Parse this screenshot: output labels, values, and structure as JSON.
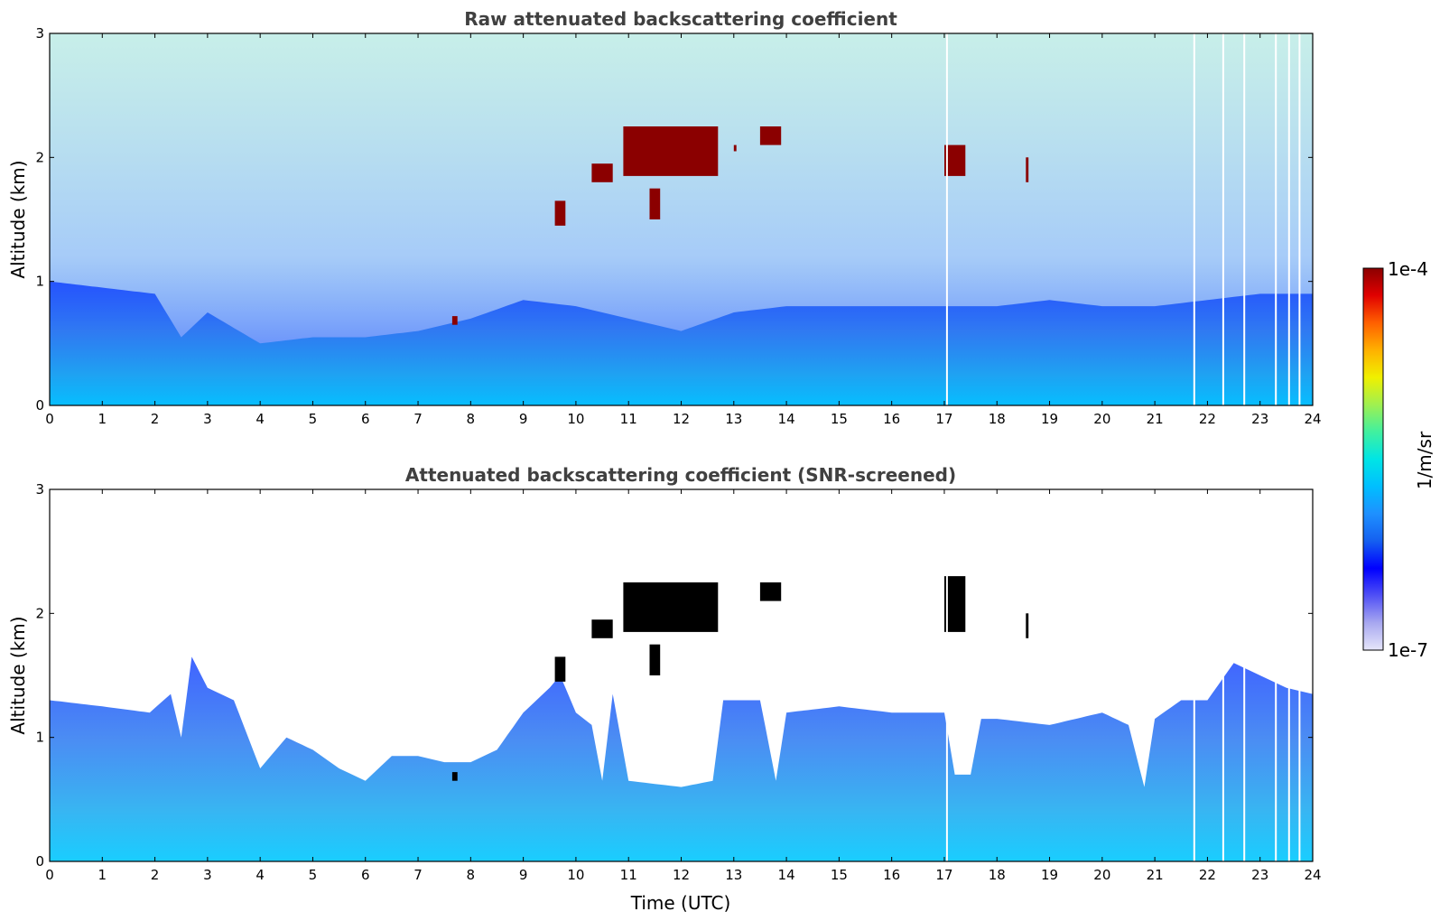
{
  "colorbar": {
    "max_label": "1e-4",
    "min_label": "1e-7",
    "unit_label": "1/m/sr",
    "scale": "log",
    "colormap": [
      "#e6e6fa",
      "#a8a8f0",
      "#5050f5",
      "#0000ff",
      "#1560f0",
      "#1e90ff",
      "#00bfff",
      "#00e5e5",
      "#40f0a0",
      "#a0f050",
      "#f0f000",
      "#ffb000",
      "#ff6000",
      "#e00000",
      "#8b0000"
    ]
  },
  "chart_data": [
    {
      "type": "heatmap",
      "title": "Raw attenuated backscattering coefficient",
      "ylabel": "Altitude (km)",
      "xlabel": "",
      "xlim": [
        0,
        24
      ],
      "ylim": [
        0,
        3
      ],
      "xticks": [
        "0",
        "1",
        "2",
        "3",
        "4",
        "5",
        "6",
        "7",
        "8",
        "9",
        "10",
        "11",
        "12",
        "13",
        "14",
        "15",
        "16",
        "17",
        "18",
        "19",
        "20",
        "21",
        "22",
        "23",
        "24"
      ],
      "yticks": [
        "0",
        "1",
        "2",
        "3"
      ],
      "boundary_layer_top_km": [
        [
          0,
          1.0
        ],
        [
          2,
          0.9
        ],
        [
          2.5,
          0.55
        ],
        [
          3,
          0.75
        ],
        [
          4,
          0.5
        ],
        [
          5,
          0.55
        ],
        [
          6,
          0.55
        ],
        [
          7,
          0.6
        ],
        [
          8,
          0.7
        ],
        [
          9,
          0.85
        ],
        [
          10,
          0.8
        ],
        [
          11,
          0.7
        ],
        [
          12,
          0.6
        ],
        [
          13,
          0.75
        ],
        [
          14,
          0.8
        ],
        [
          15,
          0.8
        ],
        [
          16,
          0.8
        ],
        [
          17,
          0.8
        ],
        [
          18,
          0.8
        ],
        [
          19,
          0.85
        ],
        [
          20,
          0.8
        ],
        [
          21,
          0.8
        ],
        [
          22,
          0.85
        ],
        [
          23,
          0.9
        ],
        [
          24,
          0.9
        ]
      ],
      "cloud_features": [
        {
          "t_start": 9.6,
          "t_end": 9.8,
          "alt_km": [
            1.45,
            1.65
          ]
        },
        {
          "t_start": 10.3,
          "t_end": 10.7,
          "alt_km": [
            1.8,
            1.95
          ]
        },
        {
          "t_start": 10.9,
          "t_end": 12.7,
          "alt_km": [
            1.85,
            2.25
          ]
        },
        {
          "t_start": 11.4,
          "t_end": 11.6,
          "alt_km": [
            1.5,
            1.75
          ]
        },
        {
          "t_start": 13.0,
          "t_end": 13.05,
          "alt_km": [
            2.05,
            2.1
          ]
        },
        {
          "t_start": 13.5,
          "t_end": 13.9,
          "alt_km": [
            2.1,
            2.25
          ]
        },
        {
          "t_start": 17.0,
          "t_end": 17.4,
          "alt_km": [
            1.85,
            2.1
          ]
        },
        {
          "t_start": 18.55,
          "t_end": 18.6,
          "alt_km": [
            1.8,
            2.0
          ]
        },
        {
          "t_start": 7.65,
          "t_end": 7.75,
          "alt_km": [
            0.65,
            0.72
          ]
        }
      ],
      "data_gaps_utc": [
        17.05,
        21.75,
        22.3,
        22.7,
        23.3,
        23.55,
        23.75
      ]
    },
    {
      "type": "heatmap",
      "title": "Attenuated backscattering coefficient (SNR-screened)",
      "ylabel": "Altitude (km)",
      "xlabel": "Time (UTC)",
      "xlim": [
        0,
        24
      ],
      "ylim": [
        0,
        3
      ],
      "xticks": [
        "0",
        "1",
        "2",
        "3",
        "4",
        "5",
        "6",
        "7",
        "8",
        "9",
        "10",
        "11",
        "12",
        "13",
        "14",
        "15",
        "16",
        "17",
        "18",
        "19",
        "20",
        "21",
        "22",
        "23",
        "24"
      ],
      "yticks": [
        "0",
        "1",
        "2",
        "3"
      ],
      "screened_signal_top_km": [
        [
          0,
          1.3
        ],
        [
          1,
          1.25
        ],
        [
          1.9,
          1.2
        ],
        [
          2.3,
          1.35
        ],
        [
          2.5,
          1.0
        ],
        [
          2.7,
          1.65
        ],
        [
          3,
          1.4
        ],
        [
          3.5,
          1.3
        ],
        [
          4,
          0.75
        ],
        [
          4.5,
          1.0
        ],
        [
          5,
          0.9
        ],
        [
          5.5,
          0.75
        ],
        [
          6,
          0.65
        ],
        [
          6.5,
          0.85
        ],
        [
          7,
          0.85
        ],
        [
          7.5,
          0.8
        ],
        [
          8,
          0.8
        ],
        [
          8.5,
          0.9
        ],
        [
          9,
          1.2
        ],
        [
          9.5,
          1.4
        ],
        [
          9.7,
          1.5
        ],
        [
          10,
          1.2
        ],
        [
          10.3,
          1.1
        ],
        [
          10.5,
          0.65
        ],
        [
          10.7,
          1.35
        ],
        [
          11,
          0.65
        ],
        [
          12,
          0.6
        ],
        [
          12.6,
          0.65
        ],
        [
          12.8,
          1.3
        ],
        [
          13.5,
          1.3
        ],
        [
          13.8,
          0.65
        ],
        [
          14,
          1.2
        ],
        [
          15,
          1.25
        ],
        [
          16,
          1.2
        ],
        [
          17,
          1.2
        ],
        [
          17.2,
          0.7
        ],
        [
          17.5,
          0.7
        ],
        [
          17.7,
          1.15
        ],
        [
          18,
          1.15
        ],
        [
          19,
          1.1
        ],
        [
          20,
          1.2
        ],
        [
          20.5,
          1.1
        ],
        [
          20.8,
          0.6
        ],
        [
          21,
          1.15
        ],
        [
          21.5,
          1.3
        ],
        [
          22,
          1.3
        ],
        [
          22.5,
          1.6
        ],
        [
          23,
          1.5
        ],
        [
          23.5,
          1.4
        ],
        [
          24,
          1.35
        ]
      ],
      "cloud_features": [
        {
          "t_start": 9.6,
          "t_end": 9.8,
          "alt_km": [
            1.45,
            1.65
          ]
        },
        {
          "t_start": 10.3,
          "t_end": 10.7,
          "alt_km": [
            1.8,
            1.95
          ]
        },
        {
          "t_start": 10.9,
          "t_end": 12.7,
          "alt_km": [
            1.85,
            2.25
          ]
        },
        {
          "t_start": 11.4,
          "t_end": 11.6,
          "alt_km": [
            1.5,
            1.75
          ]
        },
        {
          "t_start": 13.5,
          "t_end": 13.9,
          "alt_km": [
            2.1,
            2.25
          ]
        },
        {
          "t_start": 17.0,
          "t_end": 17.4,
          "alt_km": [
            1.85,
            2.3
          ]
        },
        {
          "t_start": 18.55,
          "t_end": 18.6,
          "alt_km": [
            1.8,
            2.0
          ]
        },
        {
          "t_start": 7.65,
          "t_end": 7.75,
          "alt_km": [
            0.65,
            0.72
          ]
        }
      ],
      "data_gaps_utc": [
        17.05,
        21.75,
        22.3,
        22.7,
        23.3,
        23.55,
        23.75
      ]
    }
  ]
}
